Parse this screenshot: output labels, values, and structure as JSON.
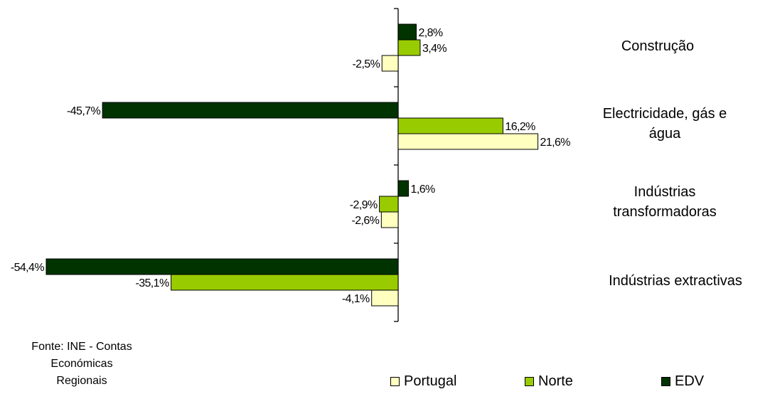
{
  "chart_data": {
    "type": "bar",
    "orientation": "horizontal",
    "categories": [
      "Construção",
      "Electricidade, gás e água",
      "Indústrias transformadoras",
      "Indústrias extractivas"
    ],
    "category_label_lines": [
      [
        "Construção"
      ],
      [
        "Electricidade, gás e",
        "água"
      ],
      [
        "Indústrias",
        "transformadoras"
      ],
      [
        "Indústrias extractivas"
      ]
    ],
    "series": [
      {
        "name": "EDV",
        "color": "#003300",
        "values": [
          2.8,
          -45.7,
          1.6,
          -54.4
        ],
        "labels": [
          "2,8%",
          "-45,7%",
          "1,6%",
          "-54,4%"
        ]
      },
      {
        "name": "Norte",
        "color": "#99CC00",
        "values": [
          3.4,
          16.2,
          -2.9,
          -35.1
        ],
        "labels": [
          "3,4%",
          "16,2%",
          "-2,9%",
          "-35,1%"
        ]
      },
      {
        "name": "Portugal",
        "color": "#FFFFC0",
        "values": [
          -2.5,
          21.6,
          -2.6,
          -4.1
        ],
        "labels": [
          "-2,5%",
          "21,6%",
          "-2,6%",
          "-4,1%"
        ]
      }
    ],
    "legend": {
      "position": "bottom-right",
      "order": [
        "Portugal",
        "Norte",
        "EDV"
      ]
    },
    "xlim": [
      -55,
      22
    ],
    "grid": false
  },
  "source_lines": [
    "Fonte: INE - Contas",
    "Económicas",
    "Regionais"
  ]
}
